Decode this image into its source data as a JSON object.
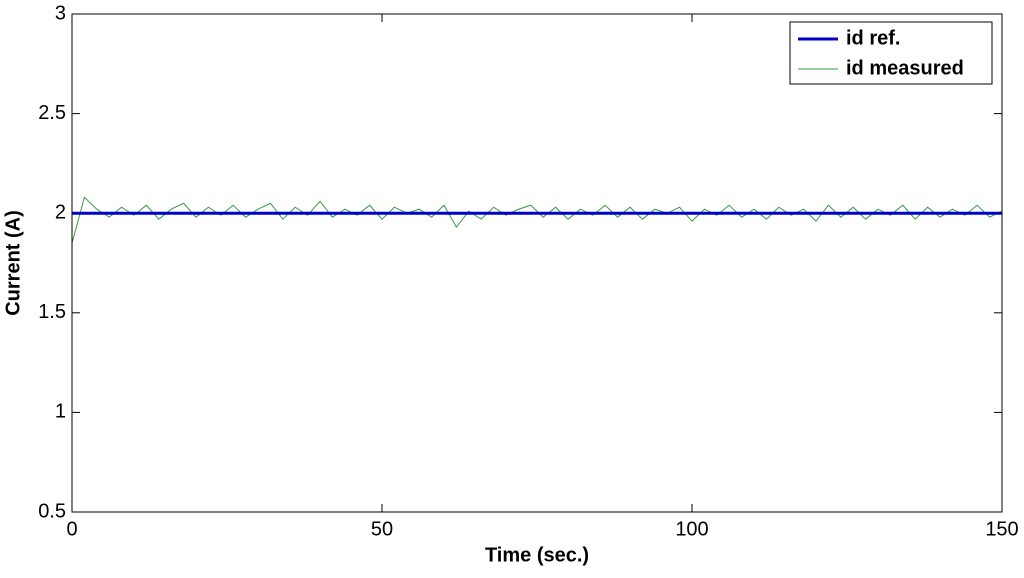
{
  "chart_data": {
    "type": "line",
    "xlabel": "Time (sec.)",
    "ylabel": "Current (A)",
    "x": [
      0,
      2,
      4,
      6,
      8,
      10,
      12,
      14,
      16,
      18,
      20,
      22,
      24,
      26,
      28,
      30,
      32,
      34,
      36,
      38,
      40,
      42,
      44,
      46,
      48,
      50,
      52,
      54,
      56,
      58,
      60,
      62,
      64,
      66,
      68,
      70,
      72,
      74,
      76,
      78,
      80,
      82,
      84,
      86,
      88,
      90,
      92,
      94,
      96,
      98,
      100,
      102,
      104,
      106,
      108,
      110,
      112,
      114,
      116,
      118,
      120,
      122,
      124,
      126,
      128,
      130,
      132,
      134,
      136,
      138,
      140,
      142,
      144,
      146,
      148,
      150
    ],
    "series": [
      {
        "name": "id ref.",
        "color": "#0000cd",
        "width": 3,
        "values": [
          2,
          2,
          2,
          2,
          2,
          2,
          2,
          2,
          2,
          2,
          2,
          2,
          2,
          2,
          2,
          2,
          2,
          2,
          2,
          2,
          2,
          2,
          2,
          2,
          2,
          2,
          2,
          2,
          2,
          2,
          2,
          2,
          2,
          2,
          2,
          2,
          2,
          2,
          2,
          2,
          2,
          2,
          2,
          2,
          2,
          2,
          2,
          2,
          2,
          2,
          2,
          2,
          2,
          2,
          2,
          2,
          2,
          2,
          2,
          2,
          2,
          2,
          2,
          2,
          2,
          2,
          2,
          2,
          2,
          2,
          2,
          2,
          2,
          2,
          2,
          2
        ]
      },
      {
        "name": "id measured",
        "color": "#3a9a3a",
        "width": 1,
        "values": [
          1.85,
          2.08,
          2.02,
          1.98,
          2.03,
          1.99,
          2.04,
          1.97,
          2.02,
          2.05,
          1.98,
          2.03,
          1.99,
          2.04,
          1.98,
          2.02,
          2.05,
          1.97,
          2.03,
          1.99,
          2.06,
          1.98,
          2.02,
          1.99,
          2.04,
          1.97,
          2.03,
          2.0,
          2.02,
          1.98,
          2.04,
          1.93,
          2.01,
          1.97,
          2.03,
          1.99,
          2.02,
          2.04,
          1.98,
          2.03,
          1.97,
          2.02,
          1.99,
          2.04,
          1.98,
          2.03,
          1.97,
          2.02,
          2.0,
          2.03,
          1.96,
          2.02,
          1.99,
          2.04,
          1.98,
          2.02,
          1.97,
          2.03,
          1.99,
          2.02,
          1.96,
          2.04,
          1.98,
          2.03,
          1.97,
          2.02,
          1.99,
          2.04,
          1.97,
          2.03,
          1.98,
          2.02,
          1.99,
          2.04,
          1.98,
          2.01
        ]
      }
    ],
    "xlim": [
      0,
      150
    ],
    "xticks": [
      0,
      50,
      100,
      150
    ],
    "ylim": [
      0.5,
      3
    ],
    "yticks": [
      0.5,
      1,
      1.5,
      2,
      2.5,
      3
    ],
    "grid": false,
    "legend": "upper right"
  }
}
